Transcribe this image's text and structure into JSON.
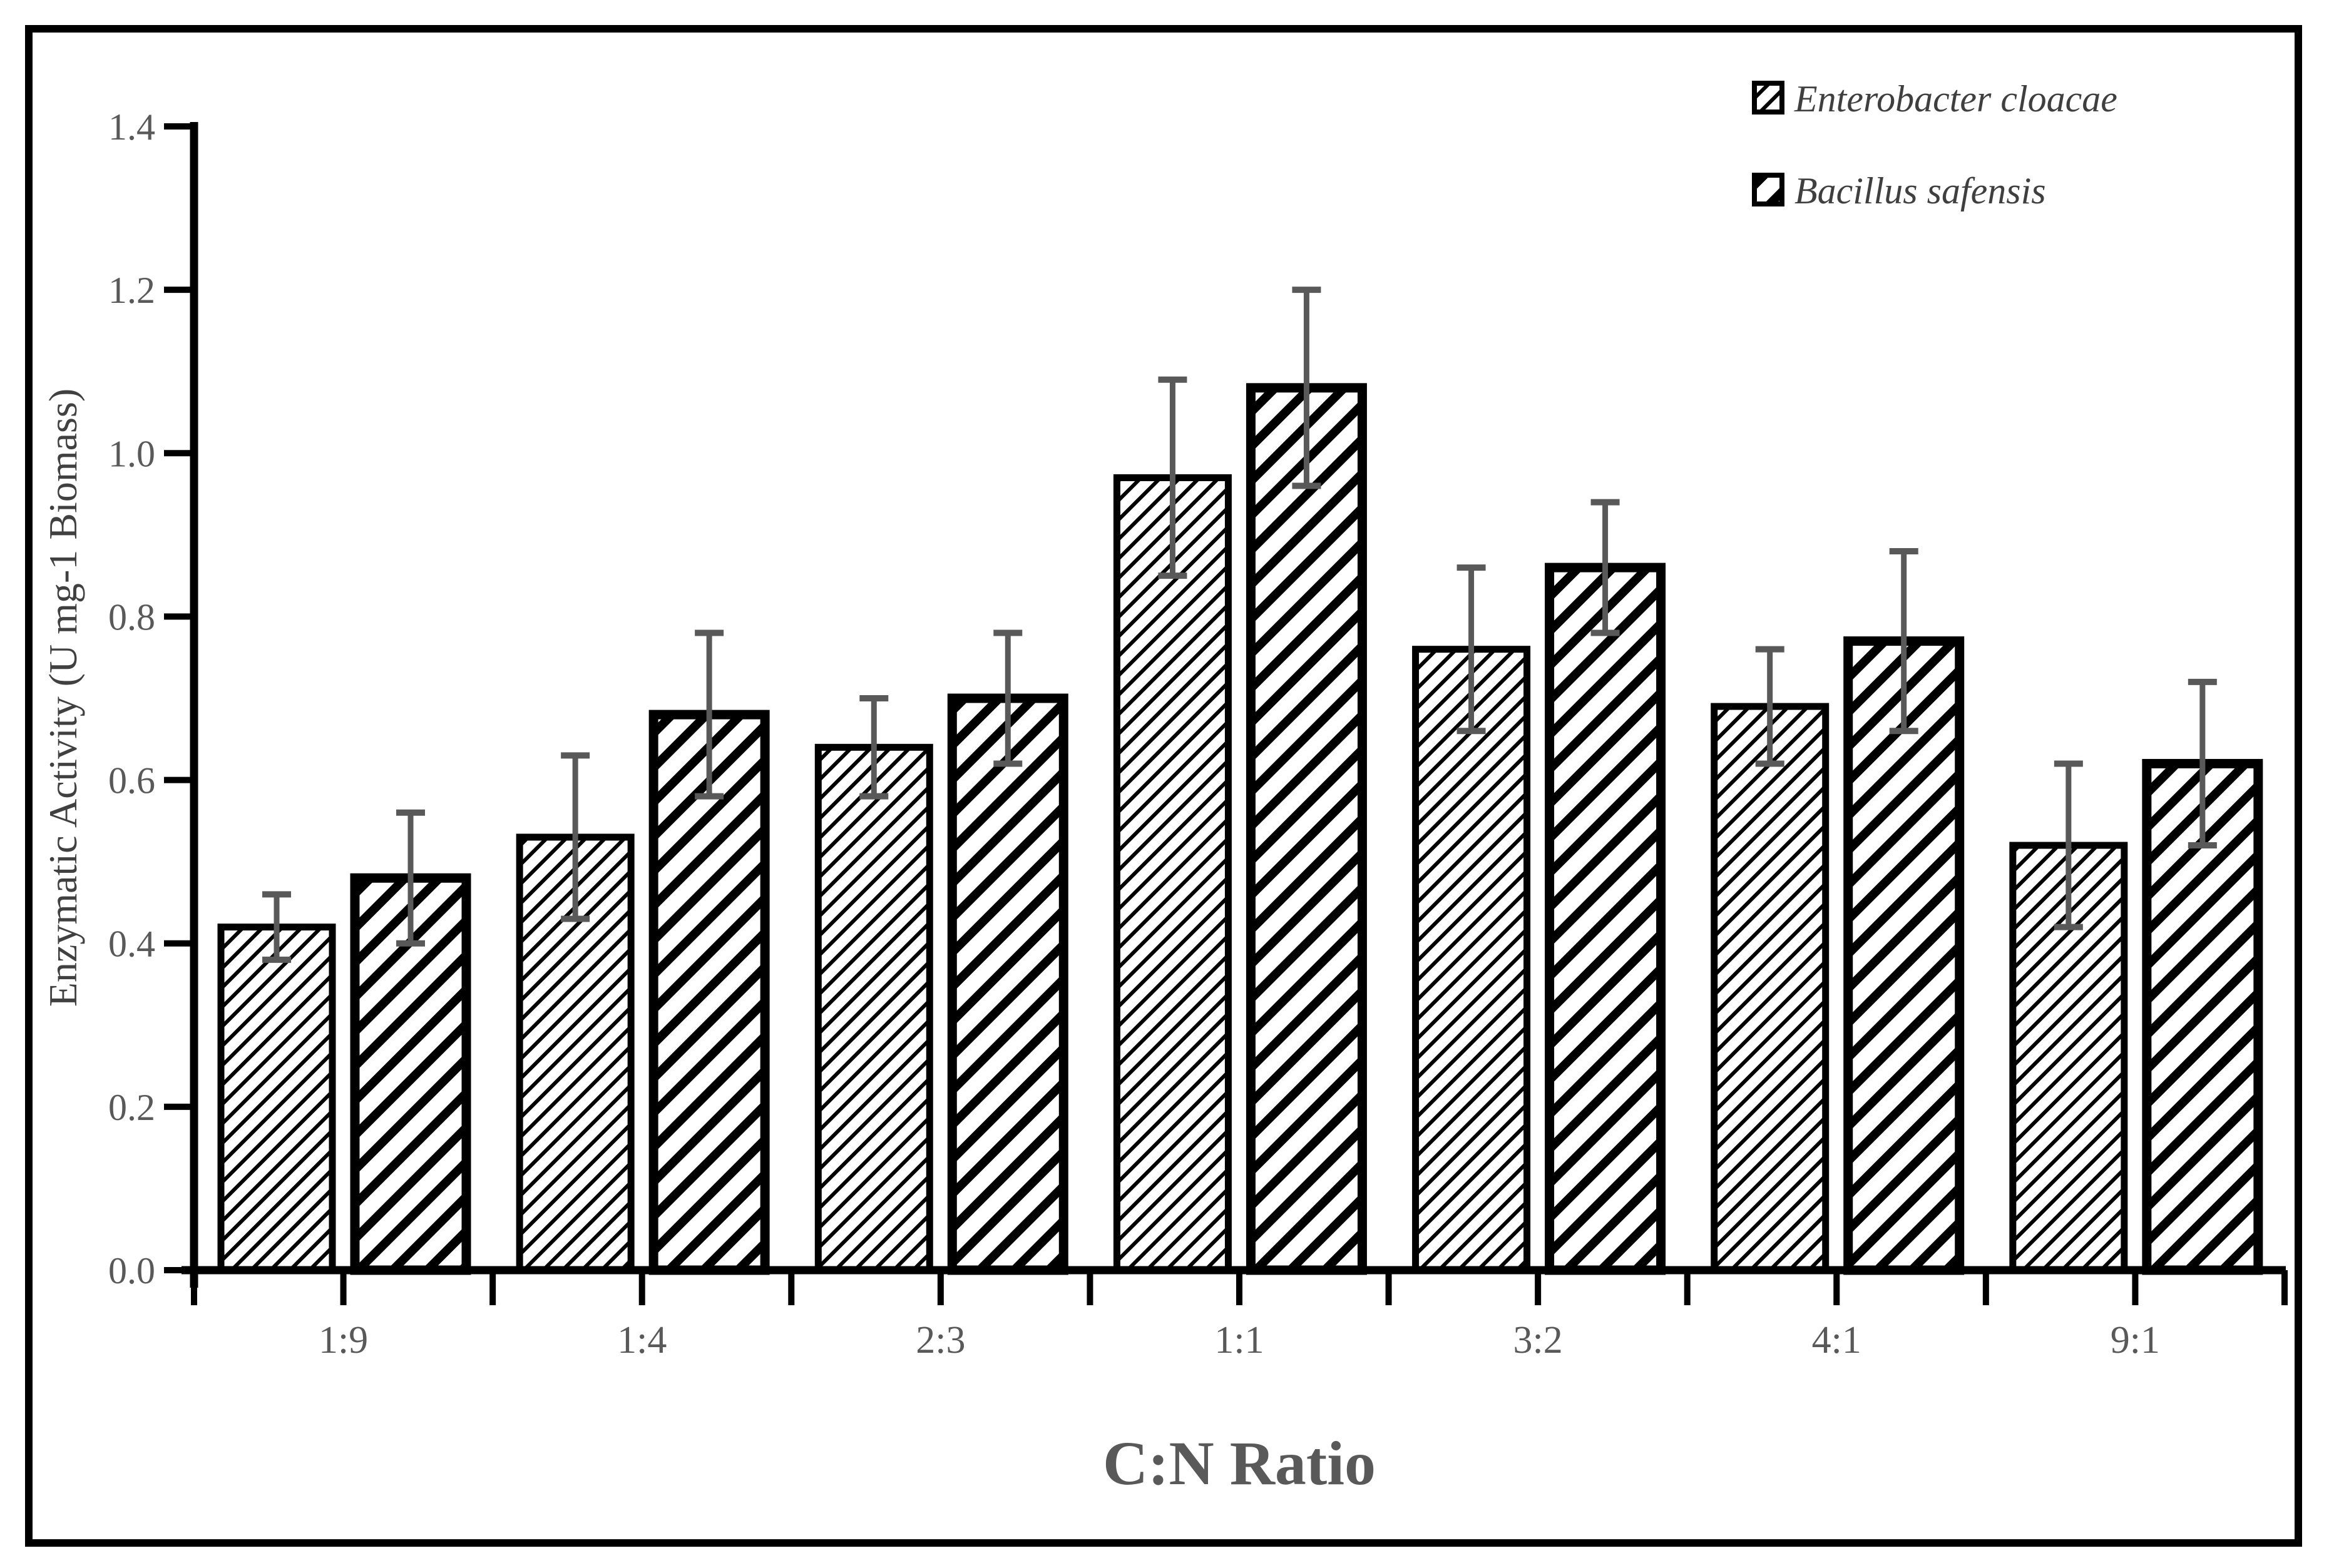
{
  "chart_data": {
    "type": "bar",
    "title": "",
    "xlabel": "C:N Ratio",
    "ylabel": "Enzymatic Activity (U mg-1 Biomass)",
    "categories": [
      "1:9",
      "1:4",
      "2:3",
      "1:1",
      "3:2",
      "4:1",
      "9:1"
    ],
    "series": [
      {
        "name": "Enterobacter cloacae",
        "hatch": "fine-diagonal",
        "values": [
          0.42,
          0.53,
          0.64,
          0.97,
          0.76,
          0.69,
          0.52
        ],
        "errors": [
          0.04,
          0.1,
          0.06,
          0.12,
          0.1,
          0.07,
          0.1
        ]
      },
      {
        "name": "Bacillus safensis",
        "hatch": "wide-diagonal",
        "values": [
          0.48,
          0.68,
          0.7,
          1.08,
          0.86,
          0.77,
          0.62
        ],
        "errors": [
          0.08,
          0.1,
          0.08,
          0.12,
          0.08,
          0.11,
          0.1
        ]
      }
    ],
    "ylim": [
      0,
      1.4
    ],
    "ytick_step": 0.2,
    "yticks": [
      "0.0",
      "0.2",
      "0.4",
      "0.6",
      "0.8",
      "1.0",
      "1.2",
      "1.4"
    ],
    "legend_position": "top-right",
    "grid": false,
    "colors": {
      "bar_fill": "#ffffff",
      "bar_outline": "#000000",
      "hatch": "#000000",
      "error_bar": "#595959",
      "axis_line": "#000000",
      "tick_text": "#595959",
      "axis_title_text": "#595959",
      "legend_text": "#3f3f3f",
      "background": "#ffffff",
      "figure_border": "#000000"
    }
  }
}
